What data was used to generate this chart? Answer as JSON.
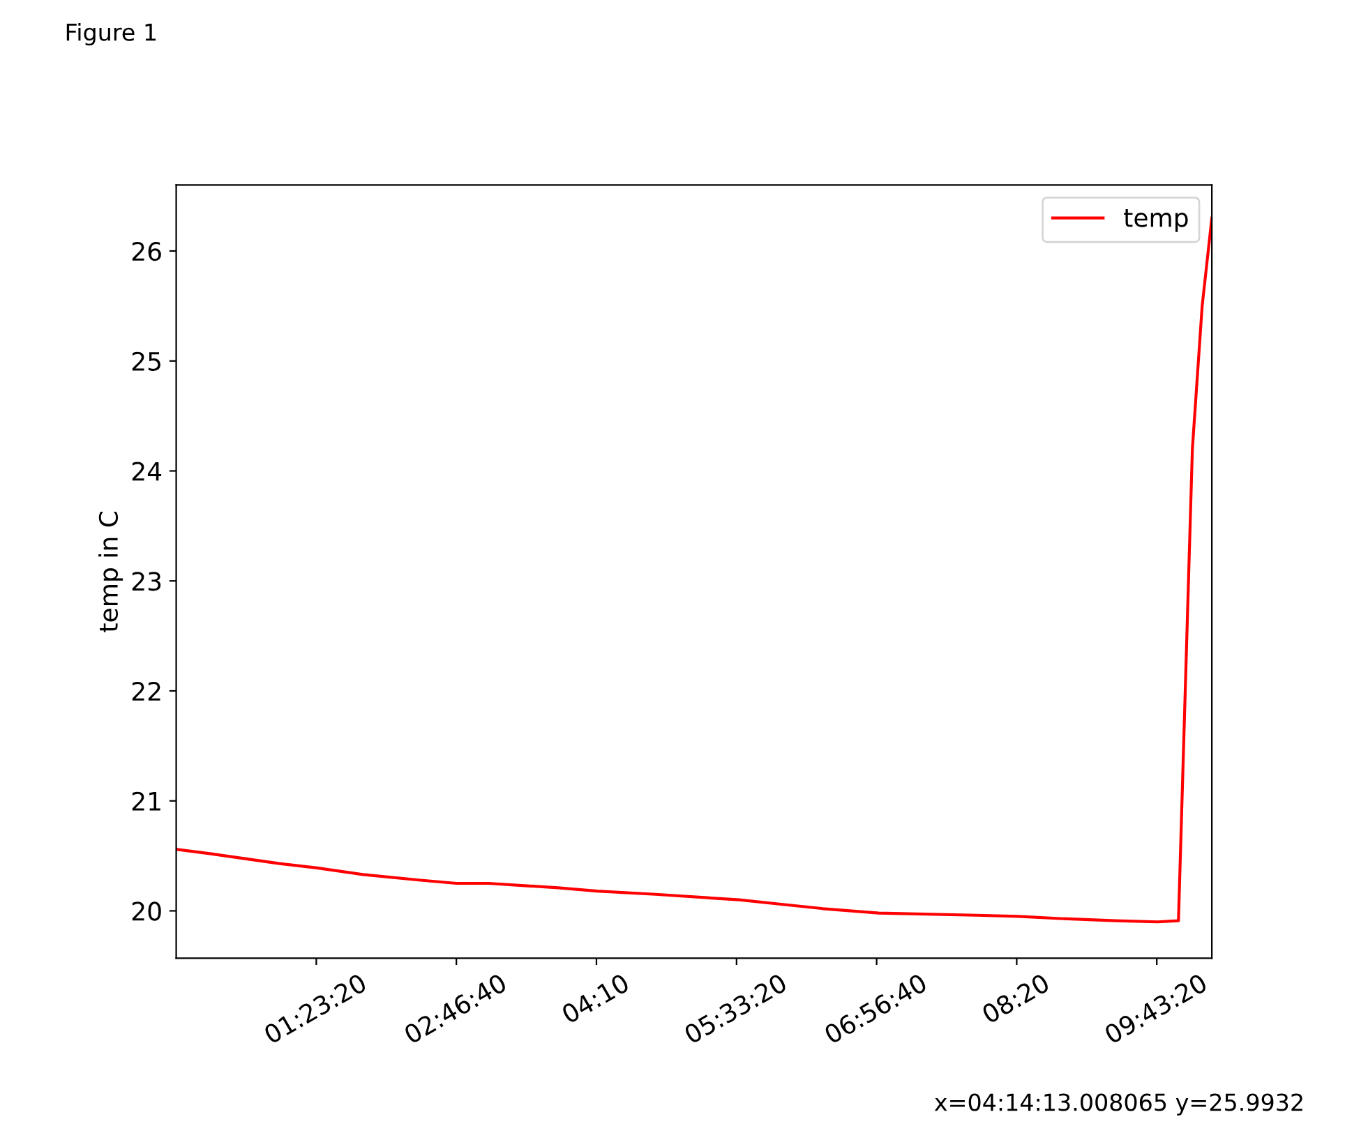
{
  "chart_data": {
    "type": "line",
    "ylabel": "temp in C",
    "annotations": [
      "Figure 1",
      "x=04:14:13.008065 y=25.9932"
    ],
    "series": [
      {
        "name": "temp",
        "color": "#ff0000",
        "x": [
          0,
          0.332,
          1.023,
          1.396,
          1.852,
          2.405,
          2.778,
          3.096,
          3.787,
          4.174,
          4.754,
          5.583,
          5.998,
          6.413,
          6.965,
          7.932,
          8.347,
          8.762,
          9.315,
          9.729,
          9.937,
          10.075,
          10.172,
          10.268
        ],
        "values": [
          20.56,
          20.52,
          20.43,
          20.39,
          20.33,
          20.28,
          20.25,
          20.25,
          20.21,
          20.18,
          20.15,
          20.1,
          20.06,
          20.02,
          19.98,
          19.96,
          19.95,
          19.93,
          19.91,
          19.9,
          19.91,
          24.2,
          25.5,
          26.3
        ]
      }
    ],
    "xlim": [
      0,
      10.268
    ],
    "ylim": [
      19.57,
      26.6
    ],
    "xticks": [
      {
        "value": 1.3889,
        "label": "01:23:20"
      },
      {
        "value": 2.7778,
        "label": "02:46:40"
      },
      {
        "value": 4.1667,
        "label": "04:10"
      },
      {
        "value": 5.5556,
        "label": "05:33:20"
      },
      {
        "value": 6.9444,
        "label": "06:56:40"
      },
      {
        "value": 8.3333,
        "label": "08:20"
      },
      {
        "value": 9.7222,
        "label": "09:43:20"
      }
    ],
    "yticks": [
      20,
      21,
      22,
      23,
      24,
      25,
      26
    ],
    "legend": "top right",
    "grid": false
  }
}
